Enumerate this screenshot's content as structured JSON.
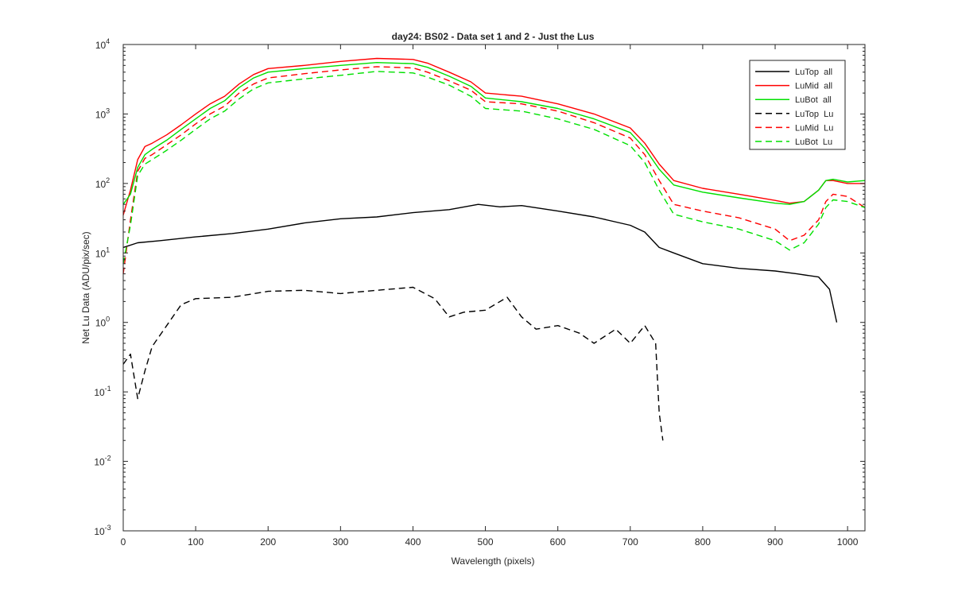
{
  "chart_data": {
    "type": "line",
    "title": "day24: BS02 - Data set 1 and 2 - Just the Lus",
    "xlabel": "Wavelength (pixels)",
    "ylabel": "Net Lu Data (ADU/pix/sec)",
    "xlim": [
      0,
      1024
    ],
    "ylim": [
      0.001,
      10000
    ],
    "yscale": "log",
    "xticks": [
      0,
      100,
      200,
      300,
      400,
      500,
      600,
      700,
      800,
      900,
      1000
    ],
    "yticks": [
      {
        "base": "10",
        "exp": "-3",
        "value": 0.001
      },
      {
        "base": "10",
        "exp": "-2",
        "value": 0.01
      },
      {
        "base": "10",
        "exp": "-1",
        "value": 0.1
      },
      {
        "base": "10",
        "exp": "0",
        "value": 1
      },
      {
        "base": "10",
        "exp": "1",
        "value": 10
      },
      {
        "base": "10",
        "exp": "2",
        "value": 100
      },
      {
        "base": "10",
        "exp": "3",
        "value": 1000
      },
      {
        "base": "10",
        "exp": "4",
        "value": 10000
      }
    ],
    "grid": false,
    "legend_position": "top-right",
    "series": [
      {
        "name": "LuTop  all",
        "color": "#000000",
        "dash": "solid",
        "x": [
          0,
          20,
          50,
          100,
          150,
          200,
          250,
          300,
          350,
          400,
          450,
          490,
          520,
          550,
          600,
          650,
          700,
          720,
          740,
          760,
          800,
          850,
          900,
          930,
          960,
          975,
          985
        ],
        "y": [
          12,
          14,
          15,
          17,
          19,
          22,
          27,
          31,
          33,
          38,
          42,
          50,
          46,
          48,
          40,
          33,
          25,
          20,
          12,
          10,
          7,
          6,
          5.5,
          5,
          4.5,
          3,
          1
        ]
      },
      {
        "name": "LuMid  all",
        "color": "#ff0000",
        "dash": "solid",
        "x": [
          0,
          10,
          20,
          30,
          40,
          60,
          80,
          100,
          120,
          140,
          160,
          180,
          200,
          250,
          300,
          350,
          400,
          420,
          450,
          480,
          500,
          550,
          600,
          650,
          700,
          720,
          740,
          760,
          800,
          850,
          900,
          920,
          940,
          960,
          970,
          980,
          1000,
          1024
        ],
        "y": [
          35,
          80,
          220,
          340,
          380,
          500,
          700,
          1000,
          1400,
          1800,
          2700,
          3700,
          4500,
          5000,
          5700,
          6300,
          6100,
          5400,
          4000,
          2900,
          2000,
          1800,
          1400,
          1000,
          630,
          380,
          190,
          110,
          85,
          70,
          57,
          52,
          55,
          80,
          110,
          110,
          100,
          100
        ]
      },
      {
        "name": "LuBot  all",
        "color": "#00e000",
        "dash": "solid",
        "x": [
          0,
          10,
          20,
          30,
          40,
          60,
          80,
          100,
          120,
          140,
          160,
          180,
          200,
          250,
          300,
          350,
          400,
          420,
          450,
          480,
          500,
          550,
          600,
          650,
          700,
          720,
          740,
          760,
          800,
          850,
          900,
          920,
          940,
          960,
          970,
          980,
          1000,
          1024
        ],
        "y": [
          50,
          70,
          170,
          260,
          310,
          420,
          600,
          850,
          1200,
          1550,
          2400,
          3300,
          4000,
          4500,
          5000,
          5500,
          5300,
          4700,
          3500,
          2500,
          1700,
          1500,
          1200,
          850,
          540,
          320,
          160,
          95,
          75,
          62,
          52,
          50,
          55,
          80,
          110,
          115,
          105,
          110
        ]
      },
      {
        "name": "LuTop  Lu",
        "color": "#000000",
        "dash": "8 5",
        "x": [
          0,
          10,
          20,
          30,
          40,
          60,
          80,
          100,
          150,
          200,
          250,
          300,
          350,
          400,
          430,
          450,
          470,
          500,
          530,
          550,
          570,
          600,
          630,
          650,
          680,
          700,
          720,
          735,
          740,
          745
        ],
        "y": [
          0.25,
          0.35,
          0.08,
          0.2,
          0.45,
          0.9,
          1.8,
          2.2,
          2.3,
          2.8,
          2.9,
          2.6,
          2.9,
          3.2,
          2.2,
          1.2,
          1.4,
          1.5,
          2.3,
          1.2,
          0.8,
          0.9,
          0.7,
          0.5,
          0.8,
          0.5,
          0.9,
          0.5,
          0.05,
          0.02
        ]
      },
      {
        "name": "LuMid  Lu",
        "color": "#ff0000",
        "dash": "8 5",
        "x": [
          0,
          10,
          20,
          30,
          40,
          60,
          80,
          100,
          120,
          140,
          160,
          180,
          200,
          250,
          300,
          350,
          400,
          420,
          450,
          480,
          500,
          550,
          600,
          650,
          700,
          720,
          740,
          760,
          800,
          850,
          900,
          920,
          940,
          960,
          970,
          980,
          1000,
          1024
        ],
        "y": [
          5,
          30,
          150,
          230,
          260,
          360,
          500,
          720,
          1000,
          1300,
          2000,
          2700,
          3300,
          3800,
          4300,
          4800,
          4600,
          4000,
          3000,
          2200,
          1500,
          1400,
          1100,
          750,
          450,
          260,
          110,
          50,
          40,
          32,
          22,
          15,
          18,
          30,
          55,
          70,
          65,
          45
        ]
      },
      {
        "name": "LuBot  Lu",
        "color": "#00e000",
        "dash": "8 5",
        "x": [
          0,
          10,
          20,
          30,
          40,
          60,
          80,
          100,
          120,
          140,
          160,
          180,
          200,
          250,
          300,
          350,
          400,
          420,
          450,
          480,
          500,
          550,
          600,
          650,
          700,
          720,
          740,
          760,
          800,
          850,
          900,
          920,
          940,
          960,
          970,
          980,
          1000,
          1024
        ],
        "y": [
          7,
          25,
          130,
          190,
          220,
          300,
          420,
          600,
          850,
          1100,
          1650,
          2300,
          2800,
          3200,
          3600,
          4100,
          3900,
          3400,
          2600,
          1800,
          1200,
          1100,
          850,
          600,
          350,
          200,
          80,
          36,
          28,
          22,
          15,
          11,
          14,
          26,
          45,
          58,
          55,
          45
        ]
      }
    ]
  }
}
